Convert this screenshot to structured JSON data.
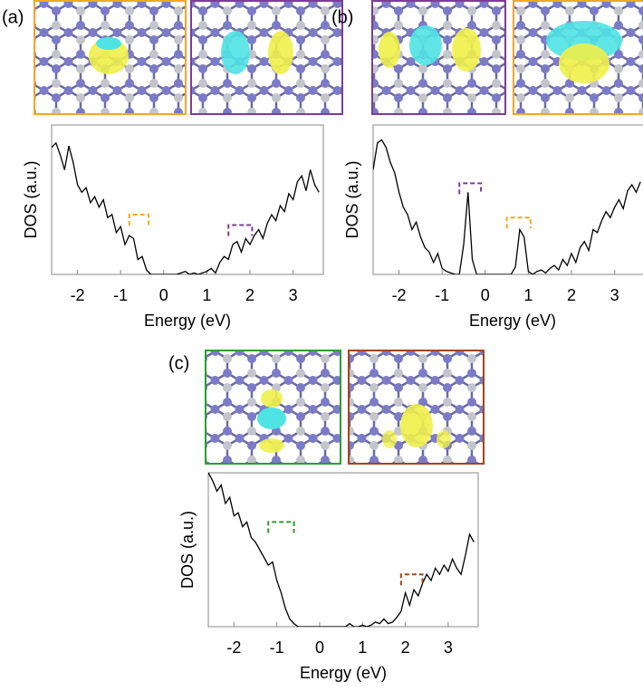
{
  "chart_data": [
    {
      "type": "line",
      "panel_label": "(a)",
      "x_label": "Energy (eV)",
      "y_label": "DOS (a.u.)",
      "x": [
        -2.6,
        -2.5,
        -2.4,
        -2.3,
        -2.2,
        -2.1,
        -2.0,
        -1.9,
        -1.8,
        -1.7,
        -1.6,
        -1.5,
        -1.4,
        -1.3,
        -1.2,
        -1.1,
        -1.0,
        -0.9,
        -0.8,
        -0.7,
        -0.6,
        -0.5,
        -0.4,
        -0.3,
        -0.2,
        -0.1,
        0.0,
        0.1,
        0.2,
        0.3,
        0.4,
        0.5,
        0.6,
        0.7,
        0.8,
        0.9,
        1.0,
        1.1,
        1.2,
        1.3,
        1.4,
        1.5,
        1.6,
        1.7,
        1.8,
        1.9,
        2.0,
        2.1,
        2.2,
        2.3,
        2.4,
        2.5,
        2.6,
        2.7,
        2.8,
        2.9,
        3.0,
        3.1,
        3.2,
        3.3,
        3.4,
        3.5,
        3.6
      ],
      "values": [
        85,
        88,
        80,
        70,
        86,
        75,
        60,
        55,
        58,
        48,
        52,
        45,
        50,
        38,
        40,
        28,
        32,
        20,
        26,
        24,
        10,
        12,
        3,
        0,
        0,
        0,
        0,
        0,
        0,
        0,
        1,
        2,
        0,
        1,
        0,
        1,
        2,
        4,
        1,
        8,
        12,
        10,
        20,
        22,
        15,
        24,
        20,
        26,
        30,
        24,
        34,
        40,
        36,
        46,
        42,
        54,
        50,
        62,
        66,
        56,
        70,
        60,
        55
      ],
      "color": "#000000",
      "xlim": [
        -2.6,
        3.7
      ],
      "ylim": [
        0,
        100
      ],
      "xticks": [
        -2,
        -1,
        0,
        1,
        2,
        3
      ],
      "markers": [
        {
          "x": [
            -0.8,
            -0.35
          ],
          "y": 40,
          "color": "#f5a623"
        },
        {
          "x": [
            1.5,
            2.05
          ],
          "y": 33,
          "color": "#7d3c98"
        }
      ]
    },
    {
      "type": "line",
      "panel_label": "(b)",
      "x_label": "Energy (eV)",
      "y_label": "DOS (a.u.)",
      "x": [
        -2.6,
        -2.5,
        -2.4,
        -2.3,
        -2.2,
        -2.1,
        -2.0,
        -1.9,
        -1.8,
        -1.7,
        -1.6,
        -1.5,
        -1.4,
        -1.3,
        -1.2,
        -1.1,
        -1.0,
        -0.9,
        -0.8,
        -0.7,
        -0.6,
        -0.5,
        -0.4,
        -0.3,
        -0.2,
        -0.1,
        0.0,
        0.1,
        0.2,
        0.3,
        0.4,
        0.5,
        0.6,
        0.7,
        0.8,
        0.9,
        1.0,
        1.1,
        1.2,
        1.3,
        1.4,
        1.5,
        1.6,
        1.7,
        1.8,
        1.9,
        2.0,
        2.1,
        2.2,
        2.3,
        2.4,
        2.5,
        2.6,
        2.7,
        2.8,
        2.9,
        3.0,
        3.1,
        3.2,
        3.3,
        3.4,
        3.5,
        3.6
      ],
      "values": [
        70,
        88,
        90,
        85,
        75,
        68,
        55,
        45,
        40,
        30,
        35,
        25,
        18,
        15,
        8,
        14,
        4,
        2,
        1,
        0,
        0,
        20,
        55,
        10,
        0,
        0,
        0,
        0,
        0,
        0,
        0,
        0,
        0,
        5,
        30,
        25,
        2,
        0,
        2,
        3,
        1,
        4,
        6,
        3,
        10,
        6,
        14,
        8,
        18,
        22,
        16,
        30,
        28,
        36,
        42,
        38,
        45,
        50,
        44,
        56,
        60,
        55,
        62
      ],
      "color": "#000000",
      "xlim": [
        -2.6,
        3.7
      ],
      "ylim": [
        0,
        100
      ],
      "xticks": [
        -2,
        -1,
        0,
        1,
        2,
        3
      ],
      "markers": [
        {
          "x": [
            -0.6,
            -0.1
          ],
          "y": 61,
          "color": "#7d3c98"
        },
        {
          "x": [
            0.5,
            1.05
          ],
          "y": 38,
          "color": "#f5a623"
        }
      ]
    },
    {
      "type": "line",
      "panel_label": "(c)",
      "x_label": "Energy (eV)",
      "y_label": "DOS (a.u.)",
      "x": [
        -2.6,
        -2.5,
        -2.4,
        -2.3,
        -2.2,
        -2.1,
        -2.0,
        -1.9,
        -1.8,
        -1.7,
        -1.6,
        -1.5,
        -1.4,
        -1.3,
        -1.2,
        -1.1,
        -1.0,
        -0.9,
        -0.8,
        -0.7,
        -0.6,
        -0.5,
        -0.4,
        -0.3,
        -0.2,
        -0.1,
        0.0,
        0.1,
        0.2,
        0.3,
        0.4,
        0.5,
        0.6,
        0.7,
        0.8,
        0.9,
        1.0,
        1.1,
        1.2,
        1.3,
        1.4,
        1.5,
        1.6,
        1.7,
        1.8,
        1.9,
        2.0,
        2.1,
        2.2,
        2.3,
        2.4,
        2.5,
        2.6,
        2.7,
        2.8,
        2.9,
        3.0,
        3.1,
        3.2,
        3.3,
        3.4,
        3.5,
        3.6
      ],
      "values": [
        100,
        95,
        88,
        92,
        80,
        84,
        72,
        74,
        65,
        68,
        58,
        55,
        50,
        45,
        40,
        42,
        30,
        22,
        12,
        5,
        2,
        0,
        0,
        0,
        0,
        0,
        0,
        0,
        0,
        0,
        0,
        0,
        0,
        2,
        0,
        0,
        1,
        0,
        1,
        3,
        2,
        5,
        2,
        3,
        6,
        10,
        22,
        14,
        24,
        20,
        28,
        34,
        30,
        38,
        34,
        40,
        36,
        44,
        38,
        34,
        46,
        60,
        55
      ],
      "color": "#000000",
      "xlim": [
        -2.6,
        3.7
      ],
      "ylim": [
        0,
        100
      ],
      "xticks": [
        -2,
        -1,
        0,
        1,
        2,
        3
      ],
      "markers": [
        {
          "x": [
            -1.2,
            -0.6
          ],
          "y": 68,
          "color": "#2e9e2e"
        },
        {
          "x": [
            1.9,
            2.4
          ],
          "y": 34,
          "color": "#a0461e"
        }
      ]
    }
  ]
}
